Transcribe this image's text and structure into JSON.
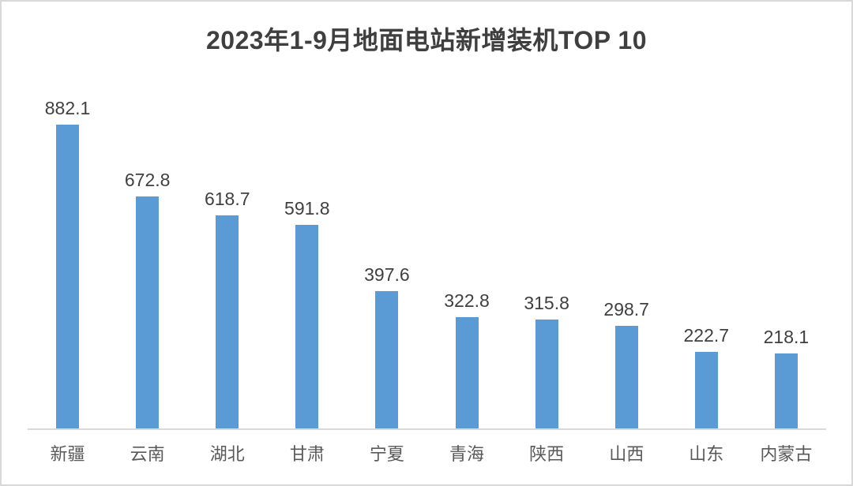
{
  "chart_data": {
    "type": "bar",
    "title": "2023年1-9月地面电站新增装机TOP 10",
    "categories": [
      "新疆",
      "云南",
      "湖北",
      "甘肃",
      "宁夏",
      "青海",
      "陕西",
      "山西",
      "山东",
      "内蒙古"
    ],
    "values": [
      882.1,
      672.8,
      618.7,
      591.8,
      397.6,
      322.8,
      315.8,
      298.7,
      222.7,
      218.1
    ],
    "xlabel": "",
    "ylabel": "",
    "ylim": [
      0,
      900
    ],
    "grid": false,
    "legend_position": "none",
    "data_labels": true,
    "bar_color": "#5b9bd5"
  },
  "colors": {
    "bar_color": "#5b9bd5",
    "frame_border": "#d9d9d9",
    "axis_line": "#d9d9d9",
    "title_text": "#3f3f3f",
    "value_label_text": "#404040",
    "category_text": "#595959"
  }
}
